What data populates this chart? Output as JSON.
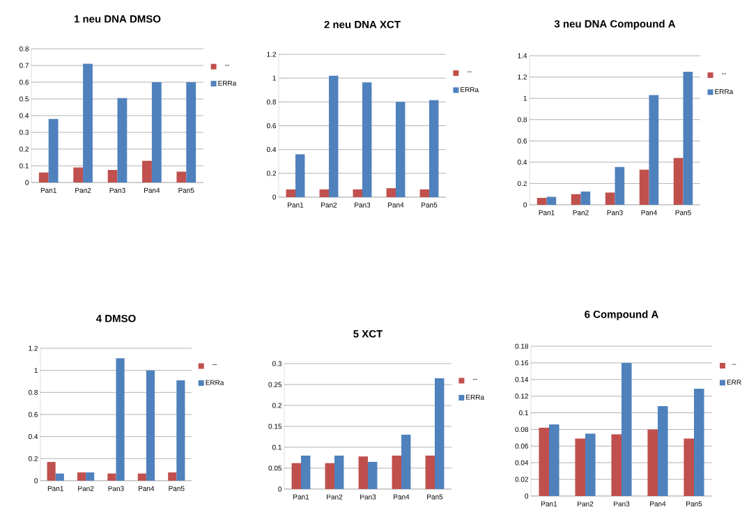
{
  "chart_data": [
    {
      "type": "bar",
      "title": "1 neu DNA DMSO",
      "categories": [
        "Pan1",
        "Pan2",
        "Pan3",
        "Pan4",
        "Pan5"
      ],
      "ylim": [
        0,
        0.8
      ],
      "yticks": [
        0,
        0.1,
        0.2,
        0.3,
        0.4,
        0.5,
        0.6,
        0.7,
        0.8
      ],
      "grid": "y",
      "legend": "right",
      "series": [
        {
          "name": "--",
          "color": "#c0504d",
          "values": [
            0.06,
            0.09,
            0.075,
            0.13,
            0.065
          ]
        },
        {
          "name": "ERRa",
          "color": "#4f81bd",
          "values": [
            0.38,
            0.71,
            0.505,
            0.6,
            0.6
          ]
        }
      ]
    },
    {
      "type": "bar",
      "title": "2 neu DNA XCT",
      "categories": [
        "Pan1",
        "Pan2",
        "Pan3",
        "Pan4",
        "Pan5"
      ],
      "ylim": [
        0,
        1.2
      ],
      "yticks": [
        0,
        0.2,
        0.4,
        0.6,
        0.8,
        1,
        1.2
      ],
      "grid": "y",
      "legend": "right",
      "series": [
        {
          "name": "--",
          "color": "#c0504d",
          "values": [
            0.065,
            0.065,
            0.065,
            0.075,
            0.065
          ]
        },
        {
          "name": "ERRa",
          "color": "#4f81bd",
          "values": [
            0.36,
            1.02,
            0.965,
            0.8,
            0.815
          ]
        }
      ]
    },
    {
      "type": "bar",
      "title": "3 neu DNA Compound A",
      "categories": [
        "Pan1",
        "Pan2",
        "Pan3",
        "Pan4",
        "Pan5"
      ],
      "ylim": [
        0,
        1.4
      ],
      "yticks": [
        0,
        0.2,
        0.4,
        0.6,
        0.8,
        1,
        1.2,
        1.4
      ],
      "grid": "y",
      "legend": "right",
      "series": [
        {
          "name": "--",
          "color": "#c0504d",
          "values": [
            0.065,
            0.1,
            0.115,
            0.33,
            0.44
          ]
        },
        {
          "name": "ERRa",
          "color": "#4f81bd",
          "values": [
            0.075,
            0.125,
            0.355,
            1.03,
            1.25
          ]
        }
      ]
    },
    {
      "type": "bar",
      "title": "4 DMSO",
      "categories": [
        "Pan1",
        "Pan2",
        "Pan3",
        "Pan4",
        "Pan5"
      ],
      "ylim": [
        0,
        1.2
      ],
      "yticks": [
        0,
        0.2,
        0.4,
        0.6,
        0.8,
        1,
        1.2
      ],
      "grid": "y",
      "legend": "right",
      "series": [
        {
          "name": "--",
          "color": "#c0504d",
          "values": [
            0.17,
            0.075,
            0.065,
            0.065,
            0.075
          ]
        },
        {
          "name": "ERRa",
          "color": "#4f81bd",
          "values": [
            0.065,
            0.075,
            1.11,
            1.0,
            0.91
          ]
        }
      ]
    },
    {
      "type": "bar",
      "title": "5 XCT",
      "categories": [
        "Pan1",
        "Pan2",
        "Pan3",
        "Pan4",
        "Pan5"
      ],
      "ylim": [
        0,
        0.3
      ],
      "yticks": [
        0,
        0.05,
        0.1,
        0.15,
        0.2,
        0.25,
        0.3
      ],
      "grid": "y",
      "legend": "right",
      "series": [
        {
          "name": "--",
          "color": "#c0504d",
          "values": [
            0.062,
            0.062,
            0.078,
            0.08,
            0.08
          ]
        },
        {
          "name": "ERRa",
          "color": "#4f81bd",
          "values": [
            0.08,
            0.08,
            0.065,
            0.13,
            0.265
          ]
        }
      ]
    },
    {
      "type": "bar",
      "title": "6 Compound A",
      "categories": [
        "Pan1",
        "Pan2",
        "Pan3",
        "Pan4",
        "Pan5"
      ],
      "ylim": [
        0,
        0.18
      ],
      "yticks": [
        0,
        0.02,
        0.04,
        0.06,
        0.08,
        0.1,
        0.12,
        0.14,
        0.16,
        0.18
      ],
      "grid": "y",
      "legend": "right",
      "series": [
        {
          "name": "--",
          "color": "#c0504d",
          "values": [
            0.082,
            0.069,
            0.074,
            0.08,
            0.069
          ]
        },
        {
          "name": "ERR",
          "color": "#4f81bd",
          "values": [
            0.086,
            0.075,
            0.16,
            0.108,
            0.129
          ]
        }
      ]
    }
  ]
}
